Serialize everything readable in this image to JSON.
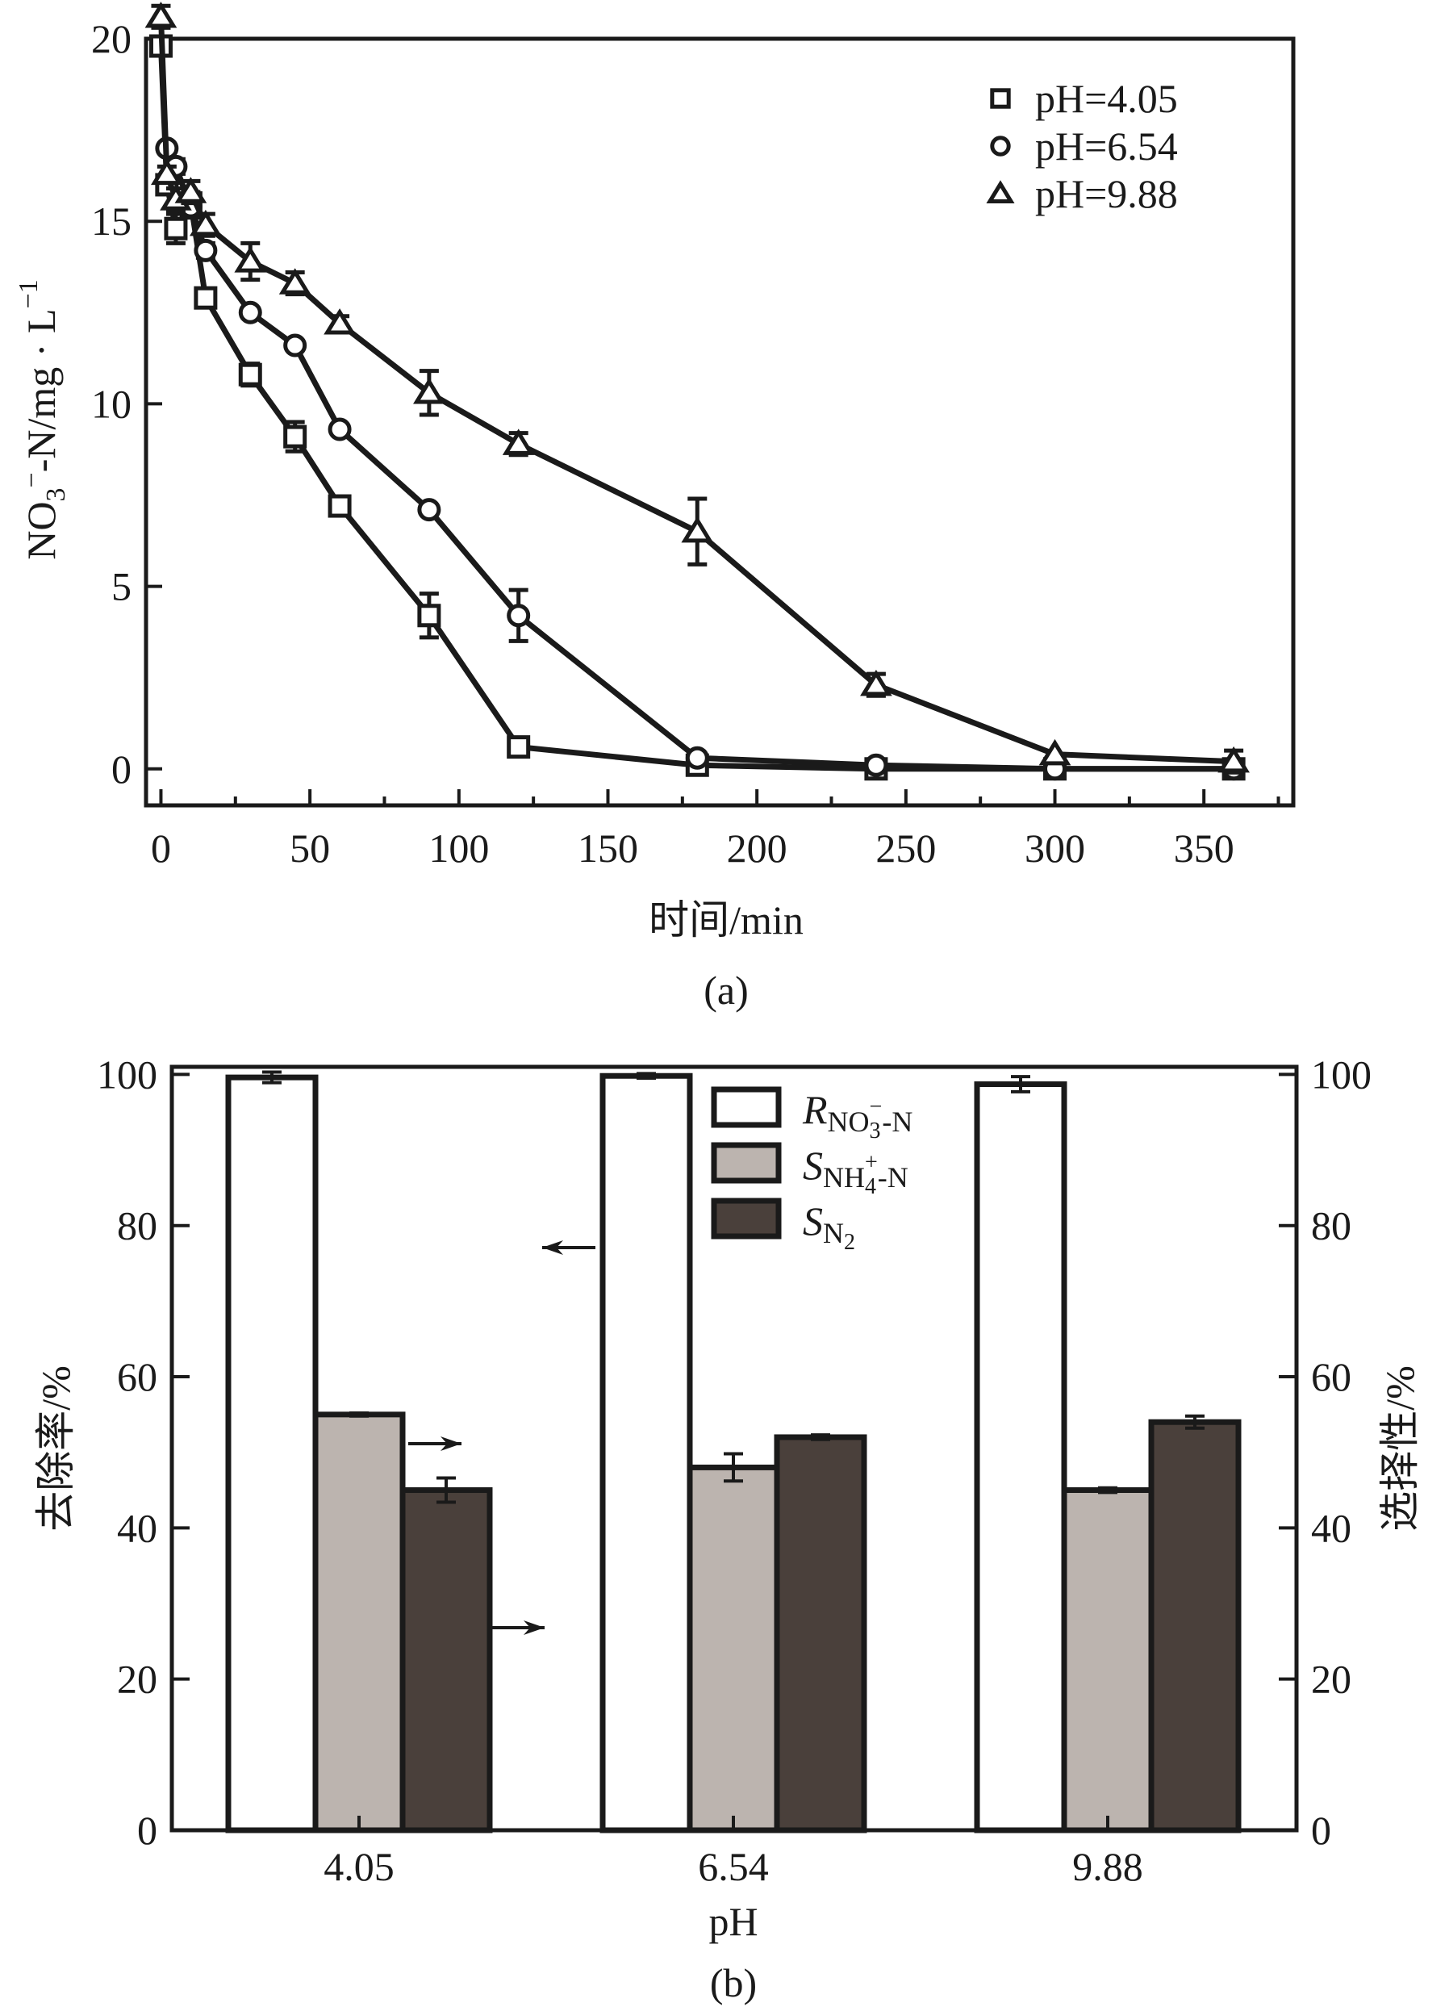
{
  "chart_data": [
    {
      "panel": "(a)",
      "type": "line",
      "xlabel": "时间/min",
      "ylabel_main": "NO",
      "ylabel_sub": "3",
      "ylabel_sup": "−",
      "ylabel_rest": "-N/mg · L",
      "ylabel_exp": "−1",
      "xlim": [
        -5,
        380
      ],
      "ylim": [
        -1,
        20
      ],
      "xticks": [
        0,
        50,
        100,
        150,
        200,
        250,
        300,
        350
      ],
      "xticks_minor": [
        25,
        75,
        125,
        175,
        225,
        275,
        325,
        375
      ],
      "yticks": [
        0,
        5,
        10,
        15,
        20
      ],
      "grid": false,
      "legend_position": "top-right",
      "series": [
        {
          "name": "pH=4.05",
          "marker": "square",
          "x": [
            0,
            2,
            5,
            10,
            15,
            30,
            45,
            60,
            90,
            120,
            180,
            240,
            300,
            360
          ],
          "y": [
            19.8,
            16.0,
            14.8,
            15.5,
            12.9,
            10.8,
            9.1,
            7.2,
            4.2,
            0.6,
            0.1,
            0.0,
            0.0,
            0.0
          ],
          "err": [
            0.2,
            0.2,
            0.4,
            0.3,
            0.1,
            0.3,
            0.4,
            0.1,
            0.6,
            0.1,
            0.1,
            0.1,
            0.1,
            0.1
          ]
        },
        {
          "name": "pH=6.54",
          "marker": "circle",
          "x": [
            2,
            5,
            10,
            15,
            30,
            45,
            60,
            90,
            120,
            180,
            240,
            300,
            360
          ],
          "y": [
            17.0,
            16.5,
            15.4,
            14.2,
            12.5,
            11.6,
            9.3,
            7.1,
            4.2,
            0.3,
            0.1,
            0.0,
            0.0
          ],
          "err": [
            0.1,
            0.2,
            0.3,
            0.2,
            0.1,
            0.1,
            0.1,
            0.1,
            0.7,
            0.1,
            0.1,
            0.1,
            0.1
          ]
        },
        {
          "name": "pH=9.88",
          "marker": "triangle",
          "x": [
            0,
            2,
            5,
            10,
            15,
            30,
            45,
            60,
            90,
            120,
            180,
            240,
            300,
            360
          ],
          "y": [
            20.6,
            16.3,
            15.6,
            15.8,
            14.9,
            13.9,
            13.3,
            12.2,
            10.3,
            8.9,
            6.5,
            2.3,
            0.4,
            0.2
          ],
          "err": [
            0.3,
            0.2,
            0.3,
            0.3,
            0.3,
            0.5,
            0.3,
            0.2,
            0.6,
            0.3,
            0.9,
            0.3,
            0.1,
            0.3
          ]
        }
      ]
    },
    {
      "panel": "(b)",
      "type": "bar",
      "xlabel": "pH",
      "ylabel_left": "去除率/%",
      "ylabel_right": "选择性/%",
      "categories": [
        "4.05",
        "6.54",
        "9.88"
      ],
      "ylim": [
        0,
        101
      ],
      "yticks": [
        0,
        20,
        40,
        60,
        80,
        100
      ],
      "grid": false,
      "legend_position": "top-center",
      "series": [
        {
          "name": "R_NO3−-N",
          "legend_main": "R",
          "legend_sub": "NO",
          "legend_sub2": "3",
          "legend_sup": "−",
          "legend_tail": "-N",
          "color": "#ffffff",
          "axis": "left",
          "values": [
            99.6,
            99.8,
            98.7
          ],
          "err": [
            0.7,
            0.3,
            1.0
          ]
        },
        {
          "name": "S_NH4+-N",
          "legend_main": "S",
          "legend_sub": "NH",
          "legend_sub2": "4",
          "legend_sup": "+",
          "legend_tail": "-N",
          "color": "#bcb4af",
          "axis": "right",
          "values": [
            55.0,
            48.0,
            45.0
          ],
          "err": [
            0.2,
            1.8,
            0.3
          ]
        },
        {
          "name": "S_N2",
          "legend_main": "S",
          "legend_sub": "N",
          "legend_sub2": "2",
          "legend_sup": "",
          "legend_tail": "",
          "color": "#4a403b",
          "axis": "right",
          "values": [
            45.0,
            52.0,
            54.0
          ],
          "err": [
            1.6,
            0.3,
            0.8
          ]
        }
      ],
      "annotations": [
        {
          "type": "arrow",
          "direction": "left",
          "meaning": "removal-rate-uses-left-axis"
        },
        {
          "type": "arrow",
          "direction": "right",
          "meaning": "selectivity-uses-right-axis"
        },
        {
          "type": "arrow",
          "direction": "right",
          "meaning": "selectivity-uses-right-axis"
        }
      ]
    }
  ]
}
